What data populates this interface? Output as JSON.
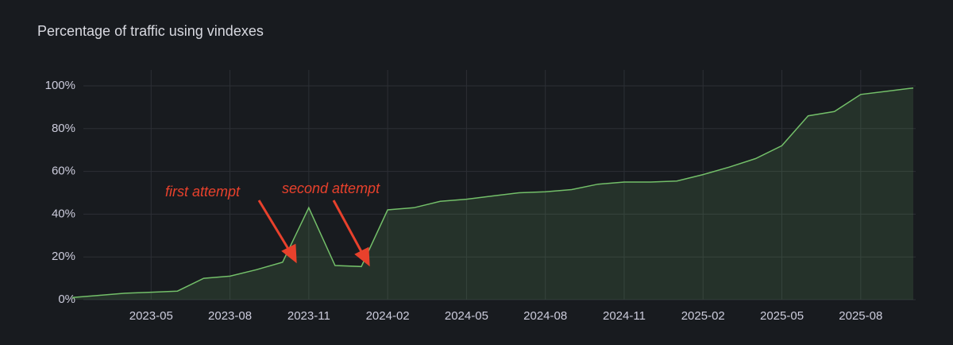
{
  "chart_data": {
    "type": "line",
    "title": "Percentage of traffic using vindexes",
    "x": [
      "2023-02",
      "2023-03",
      "2023-04",
      "2023-05",
      "2023-06",
      "2023-07",
      "2023-08",
      "2023-09",
      "2023-10",
      "2023-11",
      "2023-12",
      "2024-01",
      "2024-02",
      "2024-03",
      "2024-04",
      "2024-05",
      "2024-06",
      "2024-07",
      "2024-08",
      "2024-09",
      "2024-10",
      "2024-11",
      "2024-12",
      "2025-01",
      "2025-02",
      "2025-03",
      "2025-04",
      "2025-05",
      "2025-06",
      "2025-07",
      "2025-08",
      "2025-09",
      "2025-10"
    ],
    "values": [
      1,
      2,
      3,
      3.5,
      4,
      10,
      11,
      14,
      17.5,
      43,
      16,
      15.5,
      42,
      43,
      46,
      47,
      48.5,
      50,
      50.5,
      51.5,
      54,
      55,
      55,
      55.5,
      58.5,
      62,
      66,
      72,
      86,
      88,
      96,
      97.5,
      99
    ],
    "color": "#73bf69",
    "xlim": [
      "2023-02",
      "2025-10"
    ],
    "xticks": [
      "2023-05",
      "2023-08",
      "2023-11",
      "2024-02",
      "2024-05",
      "2024-08",
      "2024-11",
      "2025-02",
      "2025-05",
      "2025-08"
    ],
    "ylim": [
      0,
      100
    ],
    "yticks": [
      {
        "value": 0,
        "label": "0%"
      },
      {
        "value": 20,
        "label": "20%"
      },
      {
        "value": 40,
        "label": "40%"
      },
      {
        "value": 60,
        "label": "60%"
      },
      {
        "value": 80,
        "label": "80%"
      },
      {
        "value": 100,
        "label": "100%"
      }
    ],
    "grid": true,
    "annotations": [
      "first attempt",
      "second attempt"
    ]
  }
}
